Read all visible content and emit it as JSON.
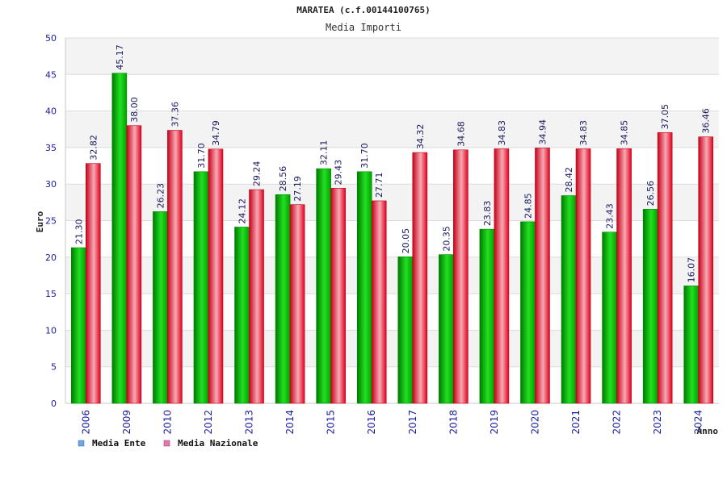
{
  "chart_data": {
    "type": "bar",
    "title": "MARATEA (c.f.00144100765)",
    "subtitle": "Media Importi",
    "xlabel": "Anno",
    "ylabel": "Euro",
    "ylim": [
      0,
      50
    ],
    "yticks": [
      "0",
      "5",
      "10",
      "15",
      "20",
      "25",
      "30",
      "35",
      "40",
      "45",
      "50"
    ],
    "grid": true,
    "legend_position": "bottom-left",
    "categories": [
      "2006",
      "2009",
      "2010",
      "2012",
      "2013",
      "2014",
      "2015",
      "2016",
      "2017",
      "2018",
      "2019",
      "2020",
      "2021",
      "2022",
      "2023",
      "2024"
    ],
    "series": [
      {
        "name": "Media Ente",
        "color": "#00c000",
        "legend_color": "#6aa7e8",
        "values": [
          21.3,
          45.17,
          26.23,
          31.7,
          24.12,
          28.56,
          32.11,
          31.7,
          20.05,
          20.35,
          23.83,
          24.85,
          28.42,
          23.43,
          26.56,
          16.07
        ],
        "labels": [
          "21.30",
          "45.17",
          "26.23",
          "31.70",
          "24.12",
          "28.56",
          "32.11",
          "31.70",
          "20.05",
          "20.35",
          "23.83",
          "24.85",
          "28.42",
          "23.43",
          "26.56",
          "16.07"
        ]
      },
      {
        "name": "Media Nazionale",
        "color": "#e00020",
        "legend_color": "#e07aa8",
        "values": [
          32.82,
          38.0,
          37.36,
          34.79,
          29.24,
          27.19,
          29.43,
          27.71,
          34.32,
          34.68,
          34.83,
          34.94,
          34.83,
          34.85,
          37.05,
          36.46
        ],
        "labels": [
          "32.82",
          "38.00",
          "37.36",
          "34.79",
          "29.24",
          "27.19",
          "29.43",
          "27.71",
          "34.32",
          "34.68",
          "34.83",
          "34.94",
          "34.83",
          "34.85",
          "37.05",
          "36.46"
        ]
      }
    ]
  }
}
